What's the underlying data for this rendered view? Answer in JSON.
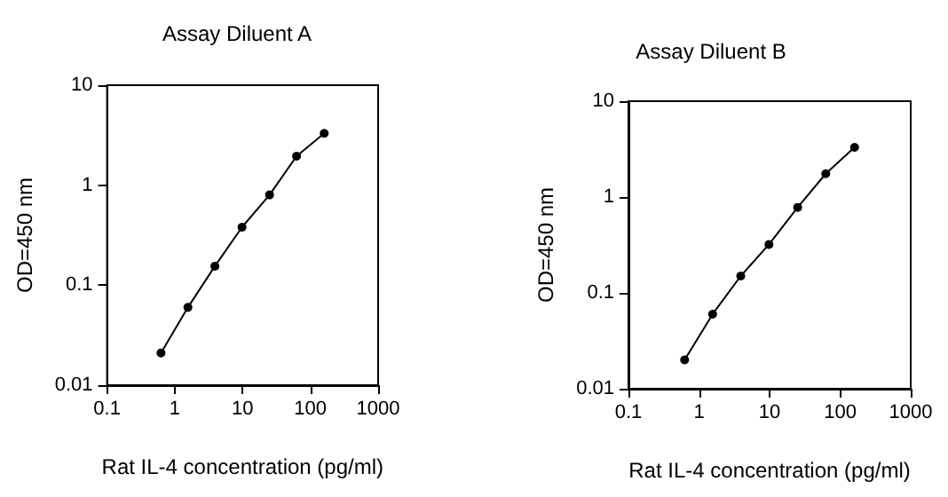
{
  "chart_data": [
    {
      "type": "line",
      "title": "Assay Diluent A",
      "xlabel": "Rat IL-4 concentration (pg/ml)",
      "ylabel": "OD=450 nm",
      "log": "xy",
      "marker": "circle",
      "line_style": "solid",
      "series": [
        {
          "color": "#000000",
          "x": [
            0.625,
            1.56,
            3.9,
            9.8,
            25,
            62.5,
            160
          ],
          "values": [
            0.021,
            0.06,
            0.155,
            0.38,
            0.8,
            1.95,
            3.3
          ]
        }
      ],
      "xlim": [
        0.1,
        1000
      ],
      "xticks": [
        0.1,
        1,
        10,
        100,
        1000
      ],
      "ylim": [
        0.01,
        10
      ],
      "yticks": [
        0.01,
        0.1,
        1,
        10
      ]
    },
    {
      "type": "line",
      "title": "Assay Diluent B",
      "xlabel": "Rat IL-4 concentration (pg/ml)",
      "ylabel": "OD=450 nm",
      "log": "xy",
      "marker": "circle",
      "line_style": "solid",
      "series": [
        {
          "color": "#000000",
          "x": [
            0.625,
            1.56,
            3.9,
            9.8,
            25,
            62.5,
            160
          ],
          "values": [
            0.02,
            0.06,
            0.15,
            0.32,
            0.78,
            1.75,
            3.3
          ]
        }
      ],
      "xlim": [
        0.1,
        1000
      ],
      "xticks": [
        0.1,
        1,
        10,
        100,
        1000
      ],
      "ylim": [
        0.01,
        10
      ],
      "yticks": [
        0.01,
        0.1,
        1,
        10
      ]
    }
  ]
}
